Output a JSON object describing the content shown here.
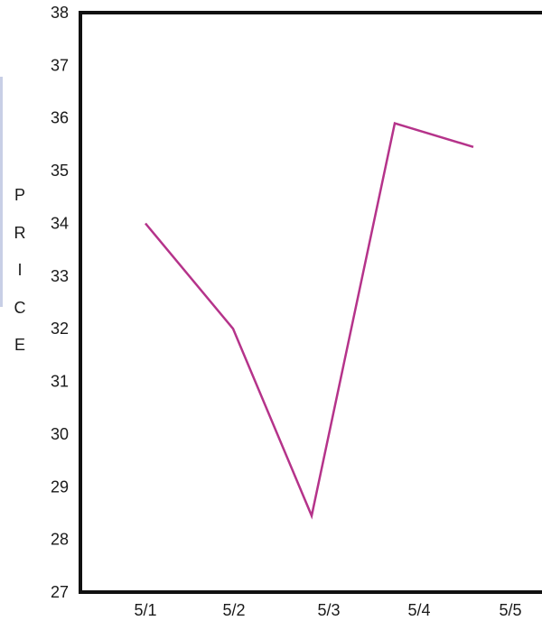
{
  "chart_data": {
    "type": "line",
    "ylabel": "PRICE",
    "ylim": [
      27,
      38
    ],
    "yticks": [
      27,
      28,
      29,
      30,
      31,
      32,
      33,
      34,
      35,
      36,
      37,
      38
    ],
    "categories": [
      "5/1",
      "5/2",
      "5/3",
      "5/4",
      "5/5"
    ],
    "series": [
      {
        "color": "#b5338a",
        "values": [
          34.0,
          32.0,
          28.45,
          35.9,
          35.45
        ]
      }
    ],
    "grid": false,
    "legend": "none"
  }
}
